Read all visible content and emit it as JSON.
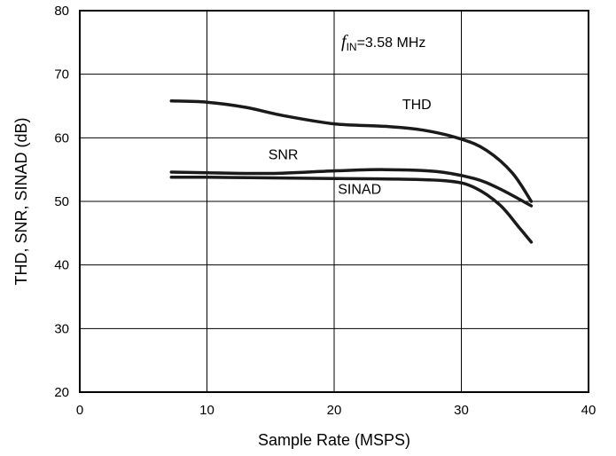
{
  "chart_data": {
    "type": "line",
    "xlabel": "Sample Rate (MSPS)",
    "ylabel": "THD, SNR, SINAD (dB)",
    "xlim": [
      0,
      40
    ],
    "ylim": [
      20,
      80
    ],
    "xticks": [
      0,
      10,
      20,
      30,
      40
    ],
    "yticks": [
      20,
      30,
      40,
      50,
      60,
      70,
      80
    ],
    "grid": true,
    "annotation": {
      "symbol": "f",
      "subscript": "IN",
      "text": "=3.58 MHz"
    },
    "series": [
      {
        "name": "THD",
        "x": [
          7.2,
          10,
          13,
          16,
          20,
          24,
          27,
          30,
          32,
          34,
          35.5
        ],
        "y": [
          65.8,
          65.6,
          64.8,
          63.5,
          62.2,
          61.8,
          61.2,
          59.8,
          58.0,
          54.5,
          50.0
        ]
      },
      {
        "name": "SNR",
        "x": [
          7.2,
          10,
          15,
          20,
          24,
          28,
          31,
          33,
          35.5
        ],
        "y": [
          54.6,
          54.5,
          54.4,
          54.8,
          55.0,
          54.7,
          53.6,
          52.0,
          49.3
        ]
      },
      {
        "name": "SINAD",
        "x": [
          7.2,
          10,
          15,
          20,
          25,
          29,
          31,
          33,
          34.5,
          35.5
        ],
        "y": [
          53.8,
          53.8,
          53.7,
          53.6,
          53.5,
          53.2,
          52.2,
          49.5,
          46.0,
          43.6
        ]
      }
    ]
  }
}
